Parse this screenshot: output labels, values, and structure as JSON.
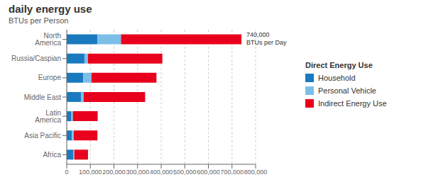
{
  "chart_data": {
    "type": "bar",
    "orientation": "horizontal",
    "stacked": true,
    "title": "daily energy use",
    "subtitle": "BTUs per Person",
    "categories": [
      "North America",
      "Russia/Caspian",
      "Europe",
      "Middle East",
      "Latin America",
      "Asia Pacific",
      "Africa"
    ],
    "series": [
      {
        "name": "Household",
        "color": "#1a7abf",
        "values": [
          130000,
          75000,
          70000,
          60000,
          18000,
          22000,
          28000
        ]
      },
      {
        "name": "Personal Vehicle",
        "color": "#7bbfe8",
        "values": [
          100000,
          15000,
          35000,
          12000,
          8000,
          8000,
          4000
        ]
      },
      {
        "name": "Indirect Energy Use",
        "color": "#e8001c",
        "values": [
          510000,
          315000,
          275000,
          260000,
          105000,
          100000,
          58000
        ]
      }
    ],
    "xlim": [
      0,
      800000
    ],
    "xticks": [
      0,
      {
        "value": 100000,
        "label": "100,000"
      },
      {
        "value": 200000,
        "label": "200,000"
      },
      {
        "value": 300000,
        "label": "300,000"
      },
      {
        "value": 400000,
        "label": "400,000"
      },
      {
        "value": 500000,
        "label": "500,000"
      },
      {
        "value": 600000,
        "label": "600,000"
      },
      {
        "value": 700000,
        "label": "700,000"
      },
      {
        "value": 800000,
        "label": "800,000"
      }
    ],
    "grid": true,
    "legend": "right",
    "legend_title": "Direct Energy Use",
    "annotations": [
      {
        "text": "740,000\nBTUs per Day",
        "x": 740000,
        "y": "North America"
      }
    ]
  }
}
